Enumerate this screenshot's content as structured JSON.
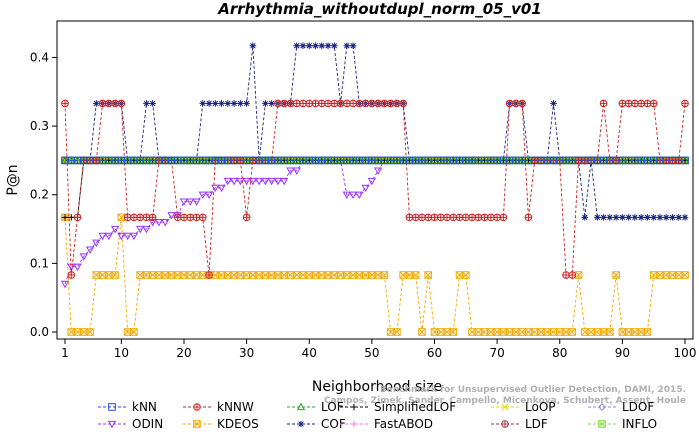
{
  "chart_data": {
    "type": "line",
    "title": "Arrhythmia_withoutdupl_norm_05_v01",
    "xlabel": "Neighborhood size",
    "ylabel": "P@n",
    "xlim": [
      1,
      100
    ],
    "ylim": [
      0,
      0.44
    ],
    "xticks": [
      1,
      10,
      20,
      30,
      40,
      50,
      60,
      70,
      80,
      90,
      100
    ],
    "yticks": [
      0.0,
      0.1,
      0.2,
      0.3,
      0.4
    ],
    "xtick_labels": [
      "1",
      "10",
      "20",
      "30",
      "40",
      "50",
      "60",
      "70",
      "80",
      "90",
      "100"
    ],
    "ytick_labels": [
      "0.0",
      "0.1",
      "0.2",
      "0.3",
      "0.4"
    ],
    "legend_position": "bottom",
    "citation": [
      "Benchmark for Unsupervised Outlier Detection, DAMI, 2015.",
      "Campos, Zimek, Sander, Campello, Micenkova, Schubert, Assent, Houle"
    ],
    "series": [
      {
        "name": "kNN",
        "color": "#1f4fd8",
        "marker": "square",
        "segments": [
          {
            "x": [
              1,
              100
            ],
            "v": [
              0.25
            ]
          }
        ]
      },
      {
        "name": "kNNW",
        "color": "#cc2222",
        "marker": "circle-plus",
        "segments": [
          {
            "x": [
              1,
              1
            ],
            "v": [
              0.333
            ]
          },
          {
            "x": [
              2,
              3
            ],
            "v": [
              0.083,
              0.167
            ]
          },
          {
            "x": [
              4,
              6
            ],
            "v": [
              0.25
            ]
          },
          {
            "x": [
              7,
              10
            ],
            "v": [
              0.333
            ]
          },
          {
            "x": [
              11,
              15
            ],
            "v": [
              0.167
            ]
          },
          {
            "x": [
              16,
              18
            ],
            "v": [
              0.25
            ]
          },
          {
            "x": [
              19,
              23
            ],
            "v": [
              0.167
            ]
          },
          {
            "x": [
              24,
              24
            ],
            "v": [
              0.083
            ]
          },
          {
            "x": [
              25,
              29
            ],
            "v": [
              0.25
            ]
          },
          {
            "x": [
              30,
              30
            ],
            "v": [
              0.167
            ]
          },
          {
            "x": [
              31,
              34
            ],
            "v": [
              0.25
            ]
          },
          {
            "x": [
              35,
              55
            ],
            "v": [
              0.333
            ]
          },
          {
            "x": [
              56,
              71
            ],
            "v": [
              0.167
            ]
          },
          {
            "x": [
              72,
              74
            ],
            "v": [
              0.333
            ]
          },
          {
            "x": [
              75,
              75
            ],
            "v": [
              0.167
            ]
          },
          {
            "x": [
              76,
              80
            ],
            "v": [
              0.25
            ]
          },
          {
            "x": [
              81,
              82
            ],
            "v": [
              0.083
            ]
          },
          {
            "x": [
              83,
              86
            ],
            "v": [
              0.25
            ]
          },
          {
            "x": [
              87,
              87
            ],
            "v": [
              0.333
            ]
          },
          {
            "x": [
              88,
              89
            ],
            "v": [
              0.25
            ]
          },
          {
            "x": [
              90,
              95
            ],
            "v": [
              0.333
            ]
          },
          {
            "x": [
              96,
              99
            ],
            "v": [
              0.25
            ]
          },
          {
            "x": [
              100,
              100
            ],
            "v": [
              0.333
            ]
          }
        ]
      },
      {
        "name": "LOF",
        "color": "#22aa22",
        "marker": "triangle",
        "segments": [
          {
            "x": [
              1,
              100
            ],
            "v": [
              0.25
            ]
          }
        ]
      },
      {
        "name": "SimplifiedLOF",
        "color": "#000000",
        "marker": "plus",
        "segments": [
          {
            "x": [
              1,
              3
            ],
            "v": [
              0.167
            ]
          },
          {
            "x": [
              4,
              100
            ],
            "v": [
              0.25
            ]
          }
        ]
      },
      {
        "name": "LoOP",
        "color": "#e6d800",
        "marker": "x",
        "segments": [
          {
            "x": [
              1,
              100
            ],
            "v": [
              0.25
            ]
          }
        ]
      },
      {
        "name": "LDOF",
        "color": "#8888ee",
        "marker": "diamond",
        "segments": [
          {
            "x": [
              1,
              100
            ],
            "v": [
              0.25
            ]
          }
        ]
      },
      {
        "name": "ODIN",
        "color": "#9933ff",
        "marker": "triangle-down",
        "segments": [
          {
            "x": [
              1,
              6
            ],
            "v": [
              0.07,
              0.095,
              0.095,
              0.11,
              0.12,
              0.13
            ]
          },
          {
            "x": [
              7,
              8
            ],
            "v": [
              0.14
            ]
          },
          {
            "x": [
              9,
              9
            ],
            "v": [
              0.15
            ]
          },
          {
            "x": [
              10,
              12
            ],
            "v": [
              0.14
            ]
          },
          {
            "x": [
              13,
              14
            ],
            "v": [
              0.15
            ]
          },
          {
            "x": [
              15,
              17
            ],
            "v": [
              0.16
            ]
          },
          {
            "x": [
              18,
              19
            ],
            "v": [
              0.17
            ]
          },
          {
            "x": [
              20,
              22
            ],
            "v": [
              0.19
            ]
          },
          {
            "x": [
              23,
              24
            ],
            "v": [
              0.2
            ]
          },
          {
            "x": [
              25,
              26
            ],
            "v": [
              0.21
            ]
          },
          {
            "x": [
              27,
              36
            ],
            "v": [
              0.22
            ]
          },
          {
            "x": [
              37,
              38
            ],
            "v": [
              0.235
            ]
          },
          {
            "x": [
              39,
              45
            ],
            "v": [
              0.25
            ]
          },
          {
            "x": [
              46,
              48
            ],
            "v": [
              0.2
            ]
          },
          {
            "x": [
              49,
              49
            ],
            "v": [
              0.21
            ]
          },
          {
            "x": [
              50,
              50
            ],
            "v": [
              0.22
            ]
          },
          {
            "x": [
              51,
              51
            ],
            "v": [
              0.235
            ]
          },
          {
            "x": [
              52,
              100
            ],
            "v": [
              0.25
            ]
          }
        ]
      },
      {
        "name": "KDEOS",
        "color": "#f2a900",
        "marker": "square-x",
        "segments": [
          {
            "x": [
              1,
              1
            ],
            "v": [
              0.167
            ]
          },
          {
            "x": [
              2,
              5
            ],
            "v": [
              0.0
            ]
          },
          {
            "x": [
              6,
              9
            ],
            "v": [
              0.083
            ]
          },
          {
            "x": [
              10,
              10
            ],
            "v": [
              0.167
            ]
          },
          {
            "x": [
              11,
              12
            ],
            "v": [
              0.0
            ]
          },
          {
            "x": [
              13,
              52
            ],
            "v": [
              0.083
            ]
          },
          {
            "x": [
              53,
              54
            ],
            "v": [
              0.0
            ]
          },
          {
            "x": [
              55,
              57
            ],
            "v": [
              0.083
            ]
          },
          {
            "x": [
              58,
              58
            ],
            "v": [
              0.0
            ]
          },
          {
            "x": [
              59,
              59
            ],
            "v": [
              0.083
            ]
          },
          {
            "x": [
              60,
              63
            ],
            "v": [
              0.0
            ]
          },
          {
            "x": [
              64,
              65
            ],
            "v": [
              0.083
            ]
          },
          {
            "x": [
              66,
              82
            ],
            "v": [
              0.0
            ]
          },
          {
            "x": [
              83,
              83
            ],
            "v": [
              0.083
            ]
          },
          {
            "x": [
              84,
              88
            ],
            "v": [
              0.0
            ]
          },
          {
            "x": [
              89,
              89
            ],
            "v": [
              0.083
            ]
          },
          {
            "x": [
              90,
              94
            ],
            "v": [
              0.0
            ]
          },
          {
            "x": [
              95,
              100
            ],
            "v": [
              0.083
            ]
          }
        ]
      },
      {
        "name": "COF",
        "color": "#1a237e",
        "marker": "asterisk",
        "segments": [
          {
            "x": [
              1,
              5
            ],
            "v": [
              0.25
            ]
          },
          {
            "x": [
              6,
              10
            ],
            "v": [
              0.333
            ]
          },
          {
            "x": [
              11,
              13
            ],
            "v": [
              0.25
            ]
          },
          {
            "x": [
              14,
              15
            ],
            "v": [
              0.333
            ]
          },
          {
            "x": [
              16,
              22
            ],
            "v": [
              0.25
            ]
          },
          {
            "x": [
              23,
              30
            ],
            "v": [
              0.333
            ]
          },
          {
            "x": [
              31,
              31
            ],
            "v": [
              0.417
            ]
          },
          {
            "x": [
              32,
              32
            ],
            "v": [
              0.25
            ]
          },
          {
            "x": [
              33,
              37
            ],
            "v": [
              0.333
            ]
          },
          {
            "x": [
              38,
              44
            ],
            "v": [
              0.417
            ]
          },
          {
            "x": [
              45,
              45
            ],
            "v": [
              0.333
            ]
          },
          {
            "x": [
              46,
              47
            ],
            "v": [
              0.417
            ]
          },
          {
            "x": [
              48,
              55
            ],
            "v": [
              0.333
            ]
          },
          {
            "x": [
              56,
              71
            ],
            "v": [
              0.25
            ]
          },
          {
            "x": [
              72,
              74
            ],
            "v": [
              0.333
            ]
          },
          {
            "x": [
              75,
              78
            ],
            "v": [
              0.25
            ]
          },
          {
            "x": [
              79,
              79
            ],
            "v": [
              0.333
            ]
          },
          {
            "x": [
              80,
              83
            ],
            "v": [
              0.25
            ]
          },
          {
            "x": [
              84,
              84
            ],
            "v": [
              0.167
            ]
          },
          {
            "x": [
              85,
              85
            ],
            "v": [
              0.25
            ]
          },
          {
            "x": [
              86,
              100
            ],
            "v": [
              0.167
            ]
          }
        ]
      },
      {
        "name": "FastABOD",
        "color": "#ff77ee",
        "marker": "plus",
        "segments": [
          {
            "x": [
              1,
              100
            ],
            "v": [
              0.25
            ]
          }
        ]
      },
      {
        "name": "LDF",
        "color": "#b03040",
        "marker": "circle-plus",
        "segments": [
          {
            "x": [
              1,
              100
            ],
            "v": [
              0.25
            ]
          }
        ]
      },
      {
        "name": "INFLO",
        "color": "#88dd44",
        "marker": "square-x",
        "segments": [
          {
            "x": [
              1,
              100
            ],
            "v": [
              0.25
            ]
          }
        ]
      }
    ]
  }
}
